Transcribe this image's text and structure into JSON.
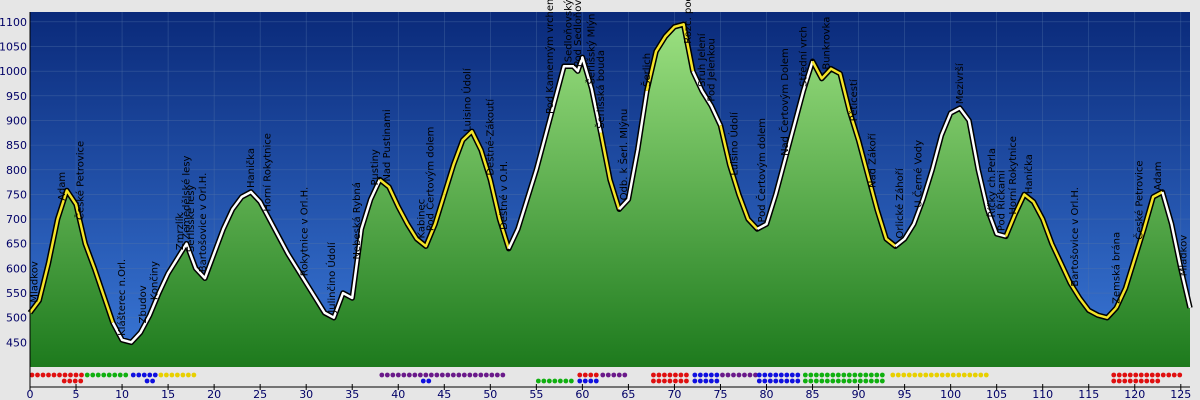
{
  "chart_data": {
    "type": "area",
    "title": "",
    "xlabel": "",
    "ylabel": "",
    "xlim": [
      0,
      126
    ],
    "ylim": [
      400,
      1120
    ],
    "x_ticks": [
      0,
      5,
      10,
      15,
      20,
      25,
      30,
      35,
      40,
      45,
      50,
      55,
      60,
      65,
      70,
      75,
      80,
      85,
      90,
      95,
      100,
      105,
      110,
      115,
      120,
      125
    ],
    "y_ticks": [
      450,
      500,
      550,
      600,
      650,
      700,
      750,
      800,
      850,
      900,
      950,
      1000,
      1050,
      1100
    ],
    "grid": true,
    "colors": {
      "background_top": "#0a2a7a",
      "background_bottom": "#3a78d8",
      "fill_top": "#9be080",
      "fill_bottom": "#1d7a1d",
      "line_yellow": "#f5e52a",
      "line_white": "#ffffff",
      "outline": "#000000",
      "marker_red": "#e01010",
      "marker_green": "#10b010",
      "marker_blue": "#1010e0",
      "marker_yellow": "#e8d000",
      "marker_purple": "#6a1a8a"
    },
    "series": [
      {
        "values": [
          [
            0,
            510
          ],
          [
            1,
            535
          ],
          [
            2,
            610
          ],
          [
            3,
            700
          ],
          [
            4,
            758
          ],
          [
            5,
            730
          ],
          [
            6,
            650
          ],
          [
            7,
            600
          ],
          [
            8,
            545
          ],
          [
            9,
            490
          ],
          [
            10,
            455
          ],
          [
            11,
            450
          ],
          [
            12,
            470
          ],
          [
            13,
            505
          ],
          [
            14,
            550
          ],
          [
            15,
            590
          ],
          [
            16,
            620
          ],
          [
            17,
            650
          ],
          [
            18,
            600
          ],
          [
            19,
            580
          ],
          [
            20,
            630
          ],
          [
            21,
            680
          ],
          [
            22,
            720
          ],
          [
            23,
            745
          ],
          [
            24,
            755
          ],
          [
            25,
            735
          ],
          [
            26,
            700
          ],
          [
            27,
            665
          ],
          [
            28,
            630
          ],
          [
            29,
            600
          ],
          [
            30,
            570
          ],
          [
            31,
            540
          ],
          [
            32,
            510
          ],
          [
            33,
            500
          ],
          [
            34,
            550
          ],
          [
            35,
            540
          ],
          [
            36,
            680
          ],
          [
            37,
            740
          ],
          [
            38,
            780
          ],
          [
            39,
            765
          ],
          [
            40,
            725
          ],
          [
            41,
            690
          ],
          [
            42,
            660
          ],
          [
            43,
            645
          ],
          [
            44,
            690
          ],
          [
            45,
            750
          ],
          [
            46,
            810
          ],
          [
            47,
            860
          ],
          [
            48,
            878
          ],
          [
            49,
            840
          ],
          [
            50,
            780
          ],
          [
            51,
            700
          ],
          [
            52,
            640
          ],
          [
            53,
            680
          ],
          [
            54,
            740
          ],
          [
            55,
            800
          ],
          [
            56,
            870
          ],
          [
            57,
            940
          ],
          [
            58,
            1010
          ],
          [
            59,
            1010
          ],
          [
            59.5,
            1000
          ],
          [
            60,
            1028
          ],
          [
            61,
            965
          ],
          [
            62,
            875
          ],
          [
            63,
            780
          ],
          [
            64,
            720
          ],
          [
            65,
            740
          ],
          [
            66,
            840
          ],
          [
            67,
            960
          ],
          [
            68,
            1040
          ],
          [
            69,
            1070
          ],
          [
            70,
            1090
          ],
          [
            71,
            1095
          ],
          [
            72,
            1000
          ],
          [
            73,
            960
          ],
          [
            74,
            930
          ],
          [
            75,
            890
          ],
          [
            76,
            810
          ],
          [
            77,
            750
          ],
          [
            78,
            700
          ],
          [
            79,
            680
          ],
          [
            80,
            690
          ],
          [
            81,
            750
          ],
          [
            82,
            820
          ],
          [
            83,
            890
          ],
          [
            84,
            960
          ],
          [
            85,
            1020
          ],
          [
            86,
            985
          ],
          [
            87,
            1005
          ],
          [
            88,
            995
          ],
          [
            89,
            920
          ],
          [
            90,
            860
          ],
          [
            91,
            790
          ],
          [
            92,
            720
          ],
          [
            93,
            660
          ],
          [
            94,
            645
          ],
          [
            95,
            660
          ],
          [
            96,
            690
          ],
          [
            97,
            740
          ],
          [
            98,
            800
          ],
          [
            99,
            870
          ],
          [
            100,
            915
          ],
          [
            101,
            925
          ],
          [
            102,
            900
          ],
          [
            103,
            800
          ],
          [
            104,
            720
          ],
          [
            105,
            670
          ],
          [
            106,
            665
          ],
          [
            107,
            710
          ],
          [
            108,
            750
          ],
          [
            109,
            735
          ],
          [
            110,
            700
          ],
          [
            111,
            650
          ],
          [
            112,
            610
          ],
          [
            113,
            570
          ],
          [
            114,
            540
          ],
          [
            115,
            515
          ],
          [
            116,
            505
          ],
          [
            117,
            500
          ],
          [
            118,
            520
          ],
          [
            119,
            560
          ],
          [
            120,
            620
          ],
          [
            121,
            680
          ],
          [
            122,
            745
          ],
          [
            123,
            755
          ],
          [
            124,
            690
          ],
          [
            125,
            600
          ],
          [
            126,
            520
          ]
        ]
      }
    ],
    "segments": [
      {
        "from": 0,
        "to": 9,
        "color": "yellow"
      },
      {
        "from": 9,
        "to": 38,
        "color": "white"
      },
      {
        "from": 38,
        "to": 45,
        "color": "yellow"
      },
      {
        "from": 45,
        "to": 52,
        "color": "yellow"
      },
      {
        "from": 52,
        "to": 62,
        "color": "white"
      },
      {
        "from": 62,
        "to": 64,
        "color": "yellow"
      },
      {
        "from": 64,
        "to": 67,
        "color": "white"
      },
      {
        "from": 67,
        "to": 72,
        "color": "yellow"
      },
      {
        "from": 72,
        "to": 75,
        "color": "white"
      },
      {
        "from": 75,
        "to": 79,
        "color": "yellow"
      },
      {
        "from": 79,
        "to": 85,
        "color": "white"
      },
      {
        "from": 85,
        "to": 94,
        "color": "yellow"
      },
      {
        "from": 94,
        "to": 106,
        "color": "white"
      },
      {
        "from": 106,
        "to": 118,
        "color": "yellow"
      },
      {
        "from": 118,
        "to": 123,
        "color": "yellow"
      },
      {
        "from": 123,
        "to": 126,
        "color": "white"
      }
    ],
    "waypoints": [
      {
        "x": 0.5,
        "label": "Mladkov"
      },
      {
        "x": 3.5,
        "label": "Adam"
      },
      {
        "x": 5.5,
        "label": "České Petrovice"
      },
      {
        "x": 10.0,
        "label": "Klášterec n.Orl."
      },
      {
        "x": 12.3,
        "label": "Zbudov"
      },
      {
        "x": 13.5,
        "label": "Končiny"
      },
      {
        "x": 16.3,
        "label": "Zmrzlík"
      },
      {
        "x": 17.0,
        "label": "Zemědělské lesy"
      },
      {
        "x": 17.5,
        "label": "Šerlišské lesy"
      },
      {
        "x": 18.8,
        "label": "Bartošovice v Orl.H."
      },
      {
        "x": 24.0,
        "label": "Hanička"
      },
      {
        "x": 25.8,
        "label": "Horní Rokytnice"
      },
      {
        "x": 29.8,
        "label": "Rokytnice v Orl.H."
      },
      {
        "x": 32.8,
        "label": "Julinčino Údolí"
      },
      {
        "x": 35.5,
        "label": "Nebeská Rybná"
      },
      {
        "x": 37.5,
        "label": "Pustiny"
      },
      {
        "x": 38.8,
        "label": "Nad Pustinami"
      },
      {
        "x": 42.5,
        "label": "Kabinec"
      },
      {
        "x": 43.5,
        "label": "Pod Čertovým dolem"
      },
      {
        "x": 47.5,
        "label": "Luisino Údolí"
      },
      {
        "x": 50.0,
        "label": "Deštné-Zákoutí"
      },
      {
        "x": 51.5,
        "label": "Deštné v O.H."
      },
      {
        "x": 56.5,
        "label": "Pod Kamenným vrchem"
      },
      {
        "x": 58.5,
        "label": "Sedloňovský černý kříž"
      },
      {
        "x": 59.5,
        "label": "Pod Sedloňovským vrchem"
      },
      {
        "x": 61.0,
        "label": "Šerlišský Mlýn"
      },
      {
        "x": 62.0,
        "label": "Šerlišská bouda"
      },
      {
        "x": 64.5,
        "label": "Odb. k Šerl. Mlýnu"
      },
      {
        "x": 67.0,
        "label": "Šerlich"
      },
      {
        "x": 71.5,
        "label": "Rozc. pod Velkou Deštnou"
      },
      {
        "x": 73.0,
        "label": "Sruh Jelení"
      },
      {
        "x": 74.0,
        "label": "Pod Jelenkou"
      },
      {
        "x": 76.5,
        "label": "Luisino Údolí"
      },
      {
        "x": 79.5,
        "label": "Pod Čertovým dolem"
      },
      {
        "x": 82.0,
        "label": "Nad Čertovým Dolem"
      },
      {
        "x": 84.0,
        "label": "Střední vrch"
      },
      {
        "x": 86.5,
        "label": "Bunkrovka"
      },
      {
        "x": 89.5,
        "label": "Pětícestí"
      },
      {
        "x": 91.5,
        "label": "Nad Zákoří"
      },
      {
        "x": 94.5,
        "label": "Orlické Záhoří"
      },
      {
        "x": 96.5,
        "label": "U Černé Vody"
      },
      {
        "x": 101.0,
        "label": "Mezivrší"
      },
      {
        "x": 104.5,
        "label": "Říčky ch.Perla"
      },
      {
        "x": 105.5,
        "label": "Pod Říčkami"
      },
      {
        "x": 106.8,
        "label": "Horní Rokytnice"
      },
      {
        "x": 108.5,
        "label": "Hanička"
      },
      {
        "x": 113.5,
        "label": "Bartošovice v Orl.H."
      },
      {
        "x": 118.0,
        "label": "Zemská brána"
      },
      {
        "x": 120.5,
        "label": "České Petrovice"
      },
      {
        "x": 122.5,
        "label": "Adam"
      },
      {
        "x": 125.3,
        "label": "Mladkov"
      }
    ],
    "markers": [
      {
        "row": 0,
        "from": 0,
        "to": 6,
        "color": "red"
      },
      {
        "row": 0,
        "from": 6,
        "to": 11,
        "color": "green"
      },
      {
        "row": 0,
        "from": 11,
        "to": 14,
        "color": "blue"
      },
      {
        "row": 0,
        "from": 14,
        "to": 18,
        "color": "yellow"
      },
      {
        "row": 1,
        "from": 3.5,
        "to": 6,
        "color": "red"
      },
      {
        "row": 1,
        "from": 12.5,
        "to": 14,
        "color": "blue"
      },
      {
        "row": 0,
        "from": 38,
        "to": 52,
        "color": "purple"
      },
      {
        "row": 1,
        "from": 42.5,
        "to": 44,
        "color": "blue"
      },
      {
        "row": 0,
        "from": 59.5,
        "to": 62,
        "color": "red"
      },
      {
        "row": 0,
        "from": 62,
        "to": 65,
        "color": "purple"
      },
      {
        "row": 1,
        "from": 55,
        "to": 59.5,
        "color": "green"
      },
      {
        "row": 1,
        "from": 59.5,
        "to": 62,
        "color": "blue"
      },
      {
        "row": 0,
        "from": 67.5,
        "to": 72,
        "color": "red"
      },
      {
        "row": 0,
        "from": 72,
        "to": 75,
        "color": "blue"
      },
      {
        "row": 0,
        "from": 75,
        "to": 79,
        "color": "purple"
      },
      {
        "row": 0,
        "from": 79,
        "to": 84,
        "color": "blue"
      },
      {
        "row": 0,
        "from": 84,
        "to": 93,
        "color": "green"
      },
      {
        "row": 1,
        "from": 67.5,
        "to": 72,
        "color": "red"
      },
      {
        "row": 1,
        "from": 72,
        "to": 75,
        "color": "blue"
      },
      {
        "row": 1,
        "from": 79,
        "to": 84,
        "color": "blue"
      },
      {
        "row": 1,
        "from": 84,
        "to": 93,
        "color": "green"
      },
      {
        "row": 0,
        "from": 93.5,
        "to": 104,
        "color": "yellow"
      },
      {
        "row": 0,
        "from": 117.5,
        "to": 125.5,
        "color": "red"
      },
      {
        "row": 1,
        "from": 117.5,
        "to": 123,
        "color": "red"
      }
    ]
  }
}
